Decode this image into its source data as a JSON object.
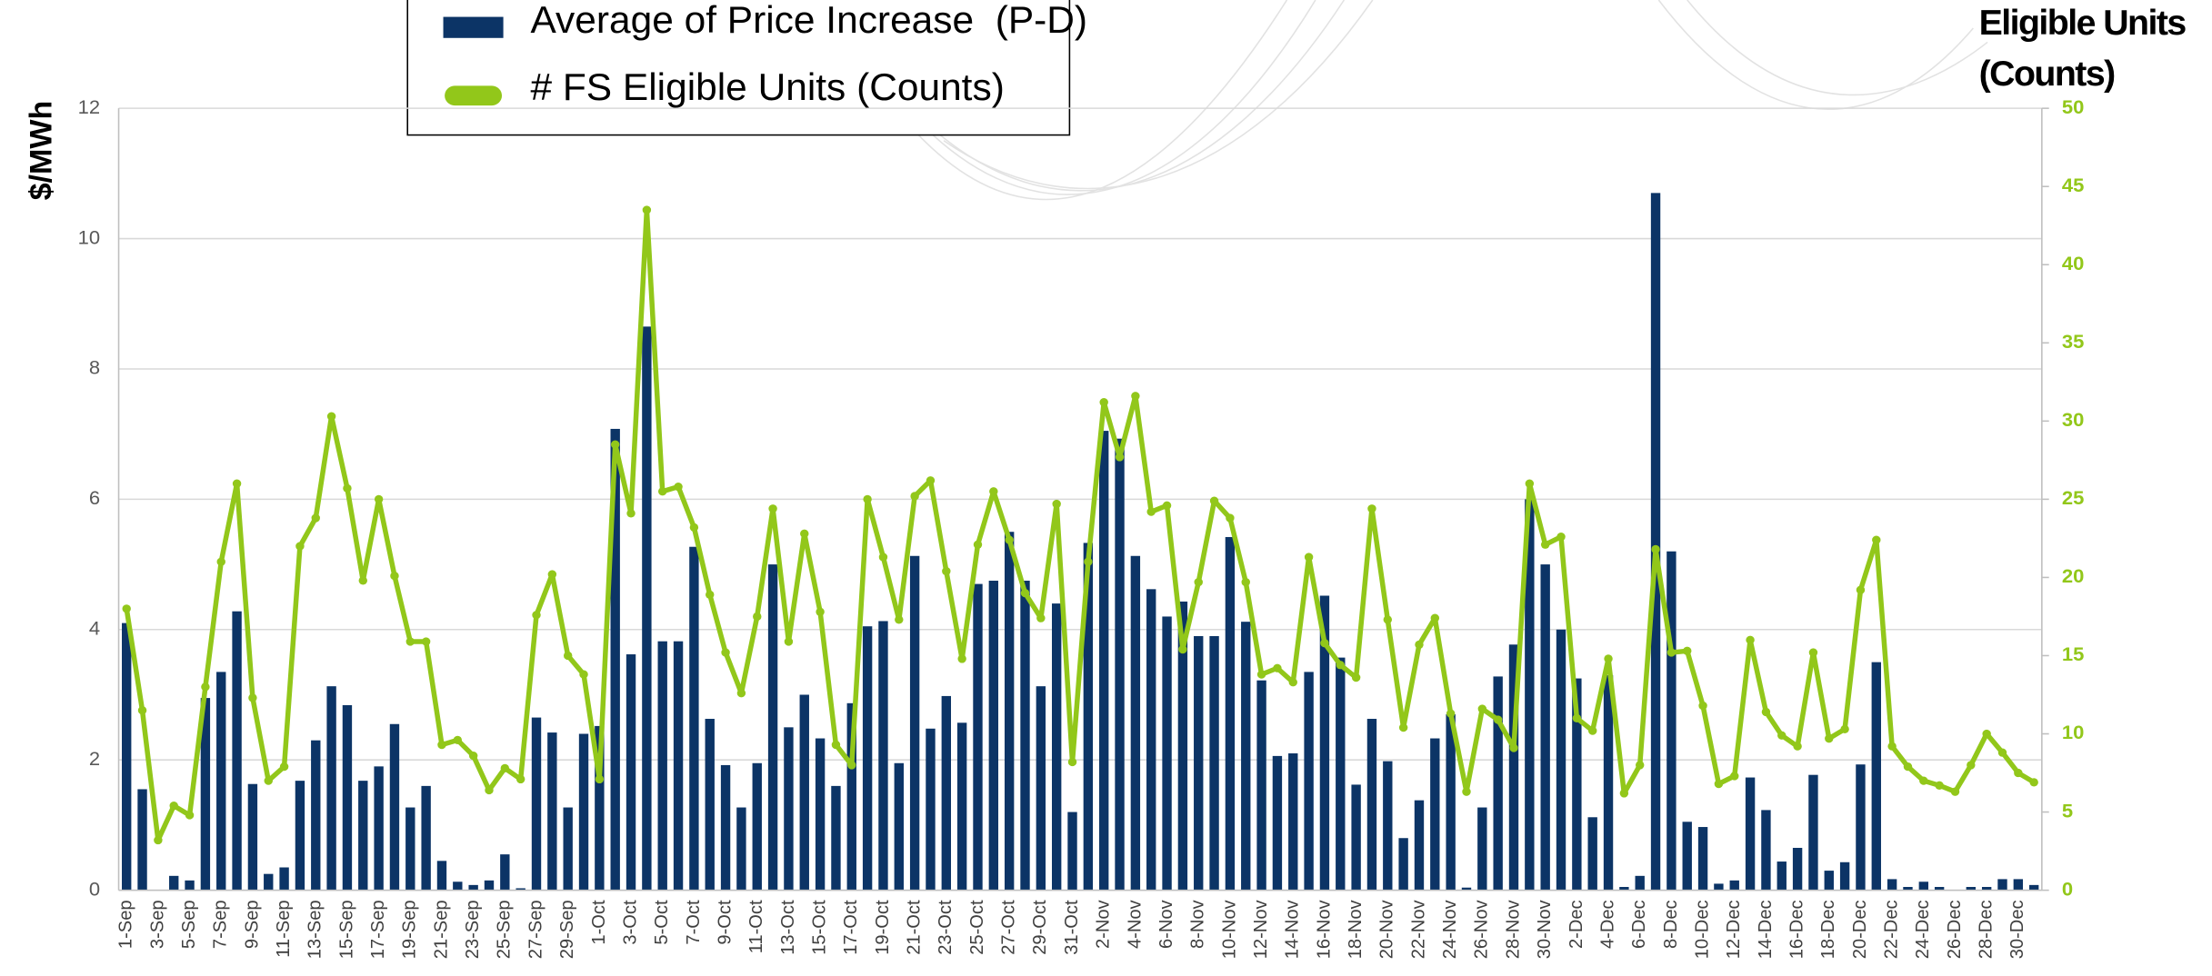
{
  "chart_data": {
    "type": "bar_line",
    "y_label": "$/MWh",
    "y2_label": [
      "Eligible Units",
      "(Counts)"
    ],
    "categories": [
      "1-Sep",
      null,
      "3-Sep",
      null,
      "5-Sep",
      null,
      "7-Sep",
      null,
      "9-Sep",
      null,
      "11-Sep",
      null,
      "13-Sep",
      null,
      "15-Sep",
      null,
      "17-Sep",
      null,
      "19-Sep",
      null,
      "21-Sep",
      null,
      "23-Sep",
      null,
      "25-Sep",
      null,
      "27-Sep",
      null,
      "29-Sep",
      null,
      "1-Oct",
      null,
      "3-Oct",
      null,
      "5-Oct",
      null,
      "7-Oct",
      null,
      "9-Oct",
      null,
      "11-Oct",
      null,
      "13-Oct",
      null,
      "15-Oct",
      null,
      "17-Oct",
      null,
      "19-Oct",
      null,
      "21-Oct",
      null,
      "23-Oct",
      null,
      "25-Oct",
      null,
      "27-Oct",
      null,
      "29-Oct",
      null,
      "31-Oct",
      null,
      "2-Nov",
      null,
      "4-Nov",
      null,
      "6-Nov",
      null,
      "8-Nov",
      null,
      "10-Nov",
      null,
      "12-Nov",
      null,
      "14-Nov",
      null,
      "16-Nov",
      null,
      "18-Nov",
      null,
      "20-Nov",
      null,
      "22-Nov",
      null,
      "24-Nov",
      null,
      "26-Nov",
      null,
      "28-Nov",
      null,
      "30-Nov",
      null,
      "2-Dec",
      null,
      "4-Dec",
      null,
      "6-Dec",
      null,
      "8-Dec",
      null,
      "10-Dec",
      null,
      "12-Dec",
      null,
      "14-Dec",
      null,
      "16-Dec",
      null,
      "18-Dec",
      null,
      "20-Dec",
      null,
      "22-Dec",
      null,
      "24-Dec",
      null,
      "26-Dec",
      null,
      "28-Dec",
      null,
      "30-Dec",
      null
    ],
    "series": [
      {
        "name": "Average of Price Increase  (P-D)",
        "color": "#0c3466",
        "kind": "bar",
        "axis": "y",
        "values": [
          4.1,
          1.55,
          0,
          0.22,
          0.15,
          2.95,
          3.35,
          4.28,
          1.63,
          0.25,
          0.35,
          1.68,
          2.3,
          3.13,
          2.84,
          1.68,
          1.9,
          2.55,
          1.27,
          1.6,
          0.45,
          0.13,
          0.08,
          0.15,
          0.55,
          0.03,
          2.65,
          2.42,
          1.27,
          2.4,
          2.52,
          7.08,
          3.62,
          8.65,
          3.82,
          3.82,
          5.27,
          2.63,
          1.92,
          1.27,
          1.95,
          5.0,
          2.5,
          3.0,
          2.33,
          1.6,
          2.87,
          4.05,
          4.13,
          1.95,
          5.13,
          2.48,
          2.98,
          2.57,
          4.7,
          4.75,
          5.5,
          4.75,
          3.13,
          4.4,
          1.2,
          5.33,
          7.05,
          6.93,
          5.13,
          4.62,
          4.2,
          4.43,
          3.9,
          3.9,
          5.42,
          4.12,
          3.22,
          2.06,
          2.1,
          3.35,
          4.52,
          3.57,
          1.62,
          2.63,
          1.98,
          0.8,
          1.38,
          2.33,
          2.7,
          0.04,
          1.27,
          3.28,
          3.77,
          6.0,
          5.0,
          4.0,
          3.25,
          1.12,
          3.3,
          0.05,
          0.22,
          10.7,
          5.2,
          1.05,
          0.97,
          0.1,
          0.15,
          1.73,
          1.23,
          0.44,
          0.65,
          1.77,
          0.3,
          0.43,
          1.93,
          3.5,
          0.17,
          0.05,
          0.13,
          0.05,
          0,
          0.05,
          0.05,
          0.17,
          0.17,
          0.08
        ]
      },
      {
        "name": "# FS Eligible Units (Counts)",
        "color": "#92c71a",
        "kind": "line",
        "axis": "y2",
        "values": [
          18,
          11.5,
          3.2,
          5.4,
          4.8,
          13,
          21,
          26,
          12.3,
          7,
          7.9,
          22,
          23.8,
          30.3,
          25.7,
          19.8,
          25,
          20.1,
          15.9,
          15.9,
          9.3,
          9.6,
          8.6,
          6.4,
          7.8,
          7.1,
          17.6,
          20.2,
          15,
          13.8,
          7.1,
          28.5,
          24.1,
          43.5,
          25.5,
          25.8,
          23.2,
          18.9,
          15.2,
          12.6,
          17.5,
          24.4,
          15.9,
          22.8,
          17.8,
          9.3,
          8,
          25,
          21.3,
          17.3,
          25.2,
          26.2,
          20.4,
          14.8,
          22.1,
          25.5,
          22.4,
          19,
          17.4,
          24.7,
          8.2,
          21,
          31.2,
          27.7,
          31.6,
          24.2,
          24.6,
          15.4,
          19.7,
          24.9,
          23.8,
          19.7,
          13.8,
          14.2,
          13.3,
          21.3,
          15.8,
          14.4,
          13.6,
          24.4,
          17.3,
          10.4,
          15.7,
          17.4,
          11.3,
          6.3,
          11.6,
          10.9,
          9.1,
          26,
          22.1,
          22.6,
          11,
          10.2,
          14.8,
          6.2,
          8,
          21.8,
          15.2,
          15.3,
          11.8,
          6.8,
          7.3,
          16,
          11.4,
          9.9,
          9.2,
          15.2,
          9.7,
          10.3,
          19.2,
          22.4,
          9.2,
          7.9,
          7,
          6.7,
          6.3,
          8,
          10,
          8.8,
          7.5,
          6.9
        ]
      }
    ],
    "ylim": [
      0,
      12
    ],
    "yticks": [
      0,
      2,
      4,
      6,
      8,
      10,
      12
    ],
    "y2lim": [
      0,
      50
    ],
    "y2ticks": [
      0,
      5,
      10,
      15,
      20,
      25,
      30,
      35,
      40,
      45,
      50
    ],
    "grid": true
  }
}
